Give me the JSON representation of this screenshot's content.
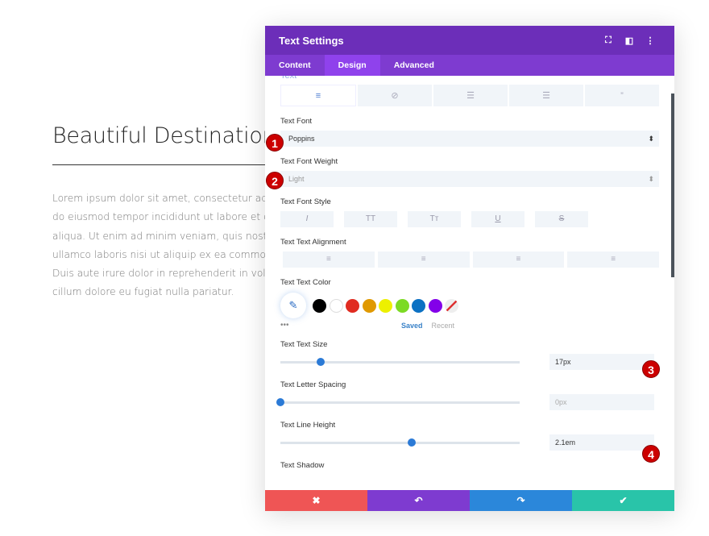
{
  "page": {
    "heading": "Beautiful Destinations",
    "paragraph_lines": [
      "Lorem ipsum dolor sit amet, consectetur adipisc",
      "do eiusmod tempor incididunt ut labore et dolor",
      "aliqua. Ut enim ad minim veniam, quis nostrud e",
      "ullamco laboris nisi ut aliquip ex ea commodo c",
      "Duis aute irure dolor in reprehenderit in voluptat",
      "cillum dolore eu fugiat nulla pariatur."
    ]
  },
  "modal": {
    "title": "Text Settings",
    "header_icons": [
      "fullscreen-icon",
      "split-view-icon",
      "more-icon"
    ],
    "tabs": [
      {
        "label": "Content"
      },
      {
        "label": "Design",
        "active": true
      },
      {
        "label": "Advanced"
      }
    ],
    "section_title": "Text",
    "text_groups": [
      {
        "icon": "align-left-icon",
        "glyph": "≡"
      },
      {
        "icon": "link-icon",
        "glyph": "⊘"
      },
      {
        "icon": "unordered-list-icon",
        "glyph": "☰"
      },
      {
        "icon": "ordered-list-icon",
        "glyph": "☰"
      },
      {
        "icon": "quote-icon",
        "glyph": "”"
      }
    ],
    "font": {
      "label": "Text Font",
      "value": "Poppins"
    },
    "weight": {
      "label": "Text Font Weight",
      "value": "Light"
    },
    "style": {
      "label": "Text Font Style",
      "buttons": [
        "I",
        "TT",
        "Tт",
        "U",
        "S"
      ]
    },
    "alignment": {
      "label": "Text Text Alignment",
      "buttons": [
        "≡",
        "≡",
        "≡",
        "≡"
      ]
    },
    "color": {
      "label": "Text Text Color",
      "swatches": [
        "#000000",
        "#ffffff",
        "#e02b20",
        "#e09900",
        "#edf000",
        "#7cda24",
        "#0c71c3",
        "#8300e9"
      ],
      "more": "•••",
      "saved": "Saved",
      "recent": "Recent"
    },
    "size": {
      "label": "Text Text Size",
      "value": "17px",
      "slider_fraction": 0.17
    },
    "letter_spacing": {
      "label": "Text Letter Spacing",
      "value": "0px",
      "slider_fraction": 0.0
    },
    "line_height": {
      "label": "Text Line Height",
      "value": "2.1em",
      "slider_fraction": 0.55
    },
    "shadow": {
      "label": "Text Shadow"
    },
    "footer": [
      {
        "name": "cancel",
        "glyph": "✖",
        "color": "#ef5555"
      },
      {
        "name": "undo",
        "glyph": "↶",
        "color": "#7e3bd0"
      },
      {
        "name": "redo",
        "glyph": "↷",
        "color": "#2b87da"
      },
      {
        "name": "save",
        "glyph": "✔",
        "color": "#29c4a9"
      }
    ]
  },
  "badges": [
    "1",
    "2",
    "3",
    "4"
  ]
}
